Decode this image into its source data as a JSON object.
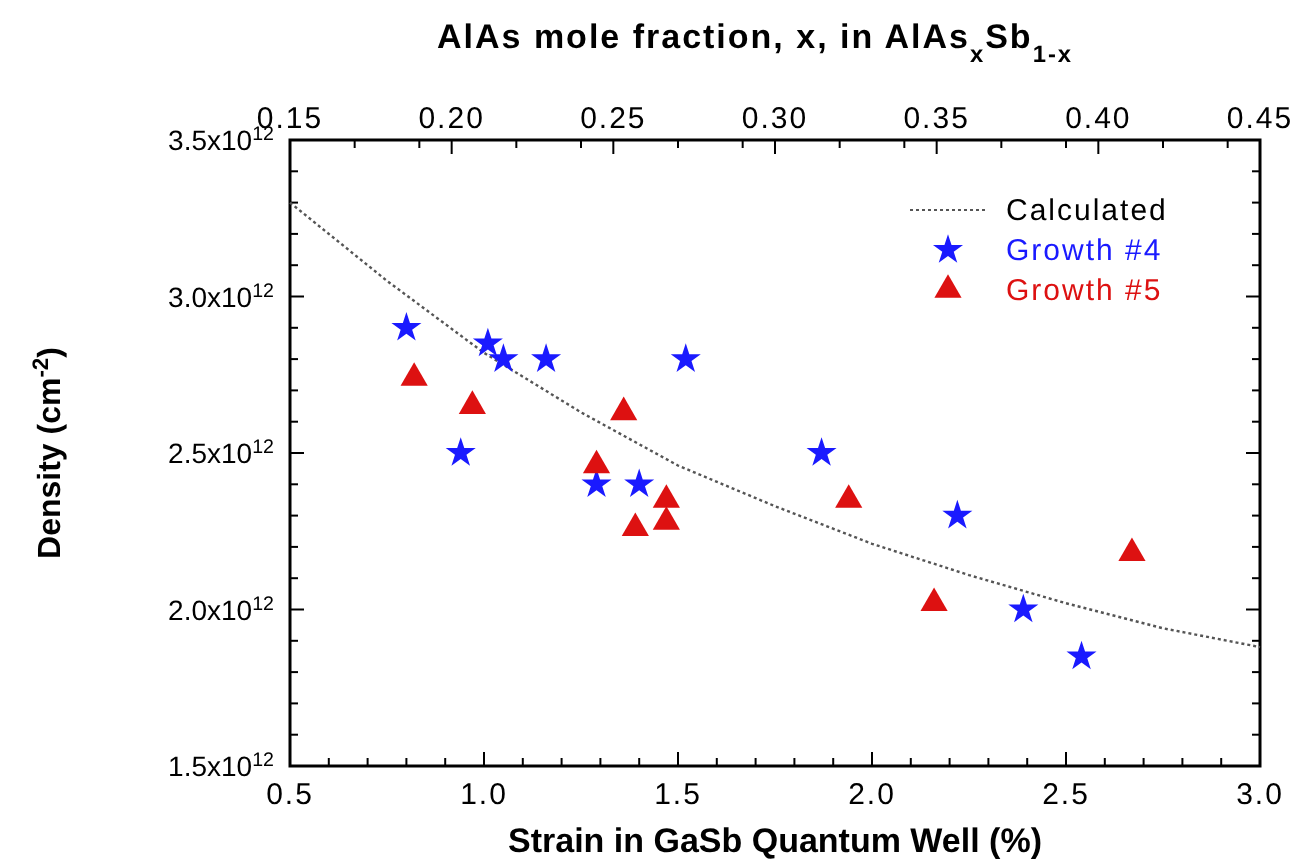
{
  "chart_data": {
    "type": "scatter",
    "xlabel": "Strain in GaSb Quantum Well (%)",
    "ylabel": "Density (cm$^{-2}$)",
    "x2label": "AlAs mole fraction, x, in AlAs$_{x}$Sb$_{1-x}$",
    "xlim": [
      0.5,
      3.0
    ],
    "xticks": [
      0.5,
      {
        "value": 0.6,
        "label": null
      },
      {
        "value": 0.7,
        "label": null
      },
      {
        "value": 0.8,
        "label": null
      },
      {
        "value": 0.9,
        "label": null
      },
      {
        "value": 1.0,
        "label": "1.0"
      },
      {
        "value": 1.1,
        "label": null
      },
      {
        "value": 1.2,
        "label": null
      },
      {
        "value": 1.3,
        "label": null
      },
      {
        "value": 1.4,
        "label": null
      },
      1.5,
      {
        "value": 1.6,
        "label": null
      },
      {
        "value": 1.7,
        "label": null
      },
      {
        "value": 1.8,
        "label": null
      },
      {
        "value": 1.9,
        "label": null
      },
      {
        "value": 2.0,
        "label": "2.0"
      },
      {
        "value": 2.1,
        "label": null
      },
      {
        "value": 2.2,
        "label": null
      },
      {
        "value": 2.3,
        "label": null
      },
      {
        "value": 2.4,
        "label": null
      },
      2.5,
      {
        "value": 2.6,
        "label": null
      },
      {
        "value": 2.7,
        "label": null
      },
      {
        "value": 2.8,
        "label": null
      },
      {
        "value": 2.9,
        "label": null
      },
      {
        "value": 3.0,
        "label": "3.0"
      }
    ],
    "x2lim": [
      0.15,
      0.45
    ],
    "x2ticks": [
      0.15,
      {
        "value": 0.17,
        "label": null
      },
      {
        "value": 0.19,
        "label": null
      },
      {
        "value": 0.2,
        "label": "0.20"
      },
      {
        "value": 0.22,
        "label": null
      },
      {
        "value": 0.24,
        "label": null
      },
      0.25,
      {
        "value": 0.27,
        "label": null
      },
      {
        "value": 0.29,
        "label": null
      },
      {
        "value": 0.3,
        "label": "0.30"
      },
      {
        "value": 0.32,
        "label": null
      },
      {
        "value": 0.34,
        "label": null
      },
      0.35,
      {
        "value": 0.37,
        "label": null
      },
      {
        "value": 0.39,
        "label": null
      },
      {
        "value": 0.4,
        "label": "0.40"
      },
      {
        "value": 0.42,
        "label": null
      },
      {
        "value": 0.44,
        "label": null
      },
      0.45
    ],
    "ylim": [
      1500000000000.0,
      3500000000000.0
    ],
    "yticks": [
      {
        "value": 1500000000000.0,
        "label": "1.5x10$^{12}$"
      },
      {
        "value": 1600000000000.0,
        "label": null
      },
      {
        "value": 1700000000000.0,
        "label": null
      },
      {
        "value": 1800000000000.0,
        "label": null
      },
      {
        "value": 1900000000000.0,
        "label": null
      },
      {
        "value": 2000000000000.0,
        "label": "2.0x10$^{12}$"
      },
      {
        "value": 2100000000000.0,
        "label": null
      },
      {
        "value": 2200000000000.0,
        "label": null
      },
      {
        "value": 2300000000000.0,
        "label": null
      },
      {
        "value": 2400000000000.0,
        "label": null
      },
      {
        "value": 2500000000000.0,
        "label": "2.5x10$^{12}$"
      },
      {
        "value": 2600000000000.0,
        "label": null
      },
      {
        "value": 2700000000000.0,
        "label": null
      },
      {
        "value": 2800000000000.0,
        "label": null
      },
      {
        "value": 2900000000000.0,
        "label": null
      },
      {
        "value": 3000000000000.0,
        "label": "3.0x10$^{12}$"
      },
      {
        "value": 3100000000000.0,
        "label": null
      },
      {
        "value": 3200000000000.0,
        "label": null
      },
      {
        "value": 3300000000000.0,
        "label": null
      },
      {
        "value": 3400000000000.0,
        "label": null
      },
      {
        "value": 3500000000000.0,
        "label": "3.5x10$^{12}$"
      }
    ],
    "grid": false,
    "legend": "top right",
    "series": [
      {
        "name": "Calculated",
        "type": "line",
        "line_style": "dotted",
        "marker": "none",
        "color": "#555555",
        "x": [
          0.5,
          0.75,
          1.0,
          1.25,
          1.5,
          1.75,
          2.0,
          2.25,
          2.5,
          2.75,
          3.0
        ],
        "values": [
          3300000000000.0,
          3050000000000.0,
          2820000000000.0,
          2630000000000.0,
          2460000000000.0,
          2330000000000.0,
          2210000000000.0,
          2110000000000.0,
          2020000000000.0,
          1940000000000.0,
          1880000000000.0
        ]
      },
      {
        "name": "Growth #4",
        "marker": "star",
        "color": "#1a1aff",
        "x": [
          0.8,
          1.01,
          1.05,
          1.16,
          1.52,
          0.94,
          1.29,
          1.4,
          1.87,
          2.22,
          2.39,
          2.54
        ],
        "values": [
          2900000000000.0,
          2850000000000.0,
          2800000000000.0,
          2800000000000.0,
          2800000000000.0,
          2500000000000.0,
          2400000000000.0,
          2400000000000.0,
          2500000000000.0,
          2300000000000.0,
          2000000000000.0,
          1850000000000.0
        ]
      },
      {
        "name": "Growth #5",
        "marker": "triangle",
        "color": "#dd1111",
        "x": [
          0.82,
          0.97,
          1.36,
          1.29,
          1.39,
          1.47,
          1.47,
          1.94,
          2.16,
          2.67
        ],
        "values": [
          2740000000000.0,
          2650000000000.0,
          2630000000000.0,
          2460000000000.0,
          2260000000000.0,
          2280000000000.0,
          2350000000000.0,
          2350000000000.0,
          2020000000000.0,
          2180000000000.0
        ]
      }
    ]
  }
}
